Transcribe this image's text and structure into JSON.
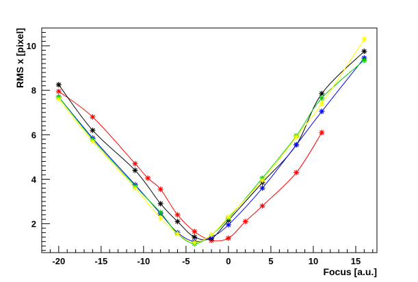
{
  "chart_data": {
    "type": "line",
    "title": "",
    "xlabel": "Focus [a.u.]",
    "ylabel": "RMS x [pixel]",
    "xlim": [
      -22,
      17.5
    ],
    "ylim": [
      0.7,
      10.8
    ],
    "x_ticks": [
      -20,
      -15,
      -10,
      -5,
      0,
      5,
      10,
      15
    ],
    "y_ticks": [
      2,
      4,
      6,
      8,
      10
    ],
    "grid": false,
    "legend": "none",
    "marker": "asterisk",
    "series": [
      {
        "color": "#ff0000",
        "points": [
          [
            -20,
            7.95
          ],
          [
            -16,
            6.8
          ],
          [
            -11,
            4.7
          ],
          [
            -9.5,
            4.05
          ],
          [
            -8,
            3.55
          ],
          [
            -6,
            2.4
          ],
          [
            -4,
            1.65
          ],
          [
            -2,
            1.25
          ],
          [
            0,
            1.35
          ],
          [
            2,
            2.1
          ],
          [
            4,
            2.8
          ],
          [
            8,
            4.3
          ],
          [
            11,
            6.1
          ]
        ]
      },
      {
        "color": "#000000",
        "points": [
          [
            -20,
            8.25
          ],
          [
            -16,
            6.2
          ],
          [
            -11,
            4.4
          ],
          [
            -8,
            2.9
          ],
          [
            -6,
            2.1
          ],
          [
            -4,
            1.4
          ],
          [
            -2,
            1.35
          ],
          [
            0,
            2.15
          ],
          [
            4,
            3.85
          ],
          [
            8,
            5.55
          ],
          [
            11,
            7.85
          ],
          [
            16,
            9.75
          ]
        ]
      },
      {
        "color": "#0000ff",
        "points": [
          [
            -20,
            7.7
          ],
          [
            -16,
            5.85
          ],
          [
            -11,
            3.75
          ],
          [
            -8,
            2.45
          ],
          [
            -6,
            1.6
          ],
          [
            -4,
            1.2
          ],
          [
            -2,
            1.4
          ],
          [
            0,
            1.95
          ],
          [
            4,
            3.6
          ],
          [
            8,
            5.55
          ],
          [
            11,
            7.05
          ],
          [
            16,
            9.45
          ]
        ]
      },
      {
        "color": "#00cc00",
        "points": [
          [
            -20,
            7.7
          ],
          [
            -16,
            5.8
          ],
          [
            -11,
            3.7
          ],
          [
            -8,
            2.5
          ],
          [
            -6,
            1.55
          ],
          [
            -4,
            1.1
          ],
          [
            -2,
            1.5
          ],
          [
            0,
            2.25
          ],
          [
            4,
            4.05
          ],
          [
            8,
            5.95
          ],
          [
            11,
            7.65
          ],
          [
            16,
            9.35
          ]
        ]
      },
      {
        "color": "#ffff00",
        "points": [
          [
            -20,
            7.6
          ],
          [
            -16,
            5.7
          ],
          [
            -11,
            3.6
          ],
          [
            -8,
            2.25
          ],
          [
            -6,
            1.55
          ],
          [
            -4,
            1.15
          ],
          [
            -2,
            1.5
          ],
          [
            0,
            2.3
          ],
          [
            4,
            3.95
          ],
          [
            8,
            5.9
          ],
          [
            11,
            7.4
          ],
          [
            16,
            10.3
          ]
        ]
      }
    ]
  }
}
